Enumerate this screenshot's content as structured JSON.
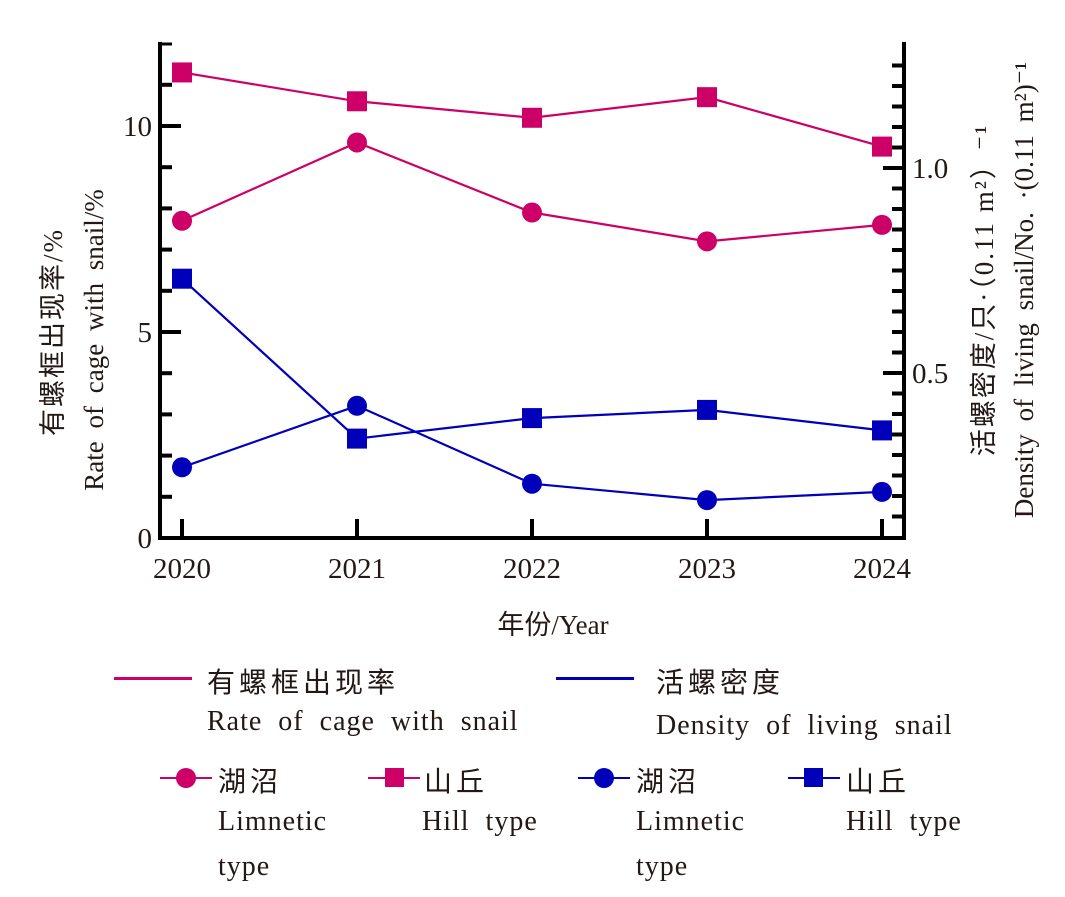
{
  "chart_data": {
    "type": "line",
    "title": "",
    "x": [
      "2020",
      "2021",
      "2022",
      "2023",
      "2024"
    ],
    "xlabel": "年份/Year",
    "y_left": {
      "label_cn": "有螺框出现率/%",
      "label_en": "Rate of cage with snail/%",
      "range": [
        0,
        12
      ],
      "major_ticks": [
        0,
        5,
        10
      ],
      "tick_labels": [
        "0",
        "5",
        "10"
      ],
      "minor_step": 1
    },
    "y_right": {
      "label_cn": "活螺密度/只·（0.11 m²）⁻¹",
      "label_en": "Density of living snail/No. ·(0.11 m²)⁻¹",
      "range": [
        0.1,
        1.3
      ],
      "major_ticks": [
        0.5,
        1.0
      ],
      "tick_labels": [
        "0.5",
        "1.0"
      ],
      "minor_step": 0.05
    },
    "grid": false,
    "legend_position": "bottom",
    "series": [
      {
        "name": "有螺框出现率 湖沼 Limnetic type",
        "metric": "rate",
        "type_cn": "湖沼",
        "type_en": "Limnetic type",
        "axis": "left",
        "marker": "circle",
        "color": "#cc0066",
        "values": [
          7.7,
          9.6,
          7.9,
          7.2,
          7.6
        ]
      },
      {
        "name": "有螺框出现率 山丘 Hill type",
        "metric": "rate",
        "type_cn": "山丘",
        "type_en": "Hill type",
        "axis": "left",
        "marker": "square",
        "color": "#cc0066",
        "values": [
          11.3,
          10.6,
          10.2,
          10.7,
          9.5
        ]
      },
      {
        "name": "活螺密度 湖沼 Limnetic type",
        "metric": "density",
        "type_cn": "湖沼",
        "type_en": "Limnetic type",
        "axis": "right",
        "marker": "circle",
        "color": "#0000bb",
        "values": [
          0.27,
          0.42,
          0.23,
          0.19,
          0.21
        ]
      },
      {
        "name": "活螺密度 山丘 Hill type",
        "metric": "density",
        "type_cn": "山丘",
        "type_en": "Hill type",
        "axis": "right",
        "marker": "square",
        "color": "#0000bb",
        "values": [
          0.73,
          0.34,
          0.39,
          0.41,
          0.36
        ]
      }
    ]
  },
  "legend": {
    "rate": {
      "cn": "有螺框出现率",
      "en": "Rate of cage with snail",
      "color": "#cc0066"
    },
    "density": {
      "cn": "活螺密度",
      "en": "Density of living snail",
      "color": "#0000bb"
    },
    "items": [
      {
        "cn": "湖沼",
        "en_line1": "Limnetic",
        "en_line2": "type"
      },
      {
        "cn": "山丘",
        "en_line1": "Hill type",
        "en_line2": ""
      },
      {
        "cn": "湖沼",
        "en_line1": "Limnetic",
        "en_line2": "type"
      },
      {
        "cn": "山丘",
        "en_line1": "Hill type",
        "en_line2": ""
      }
    ]
  }
}
